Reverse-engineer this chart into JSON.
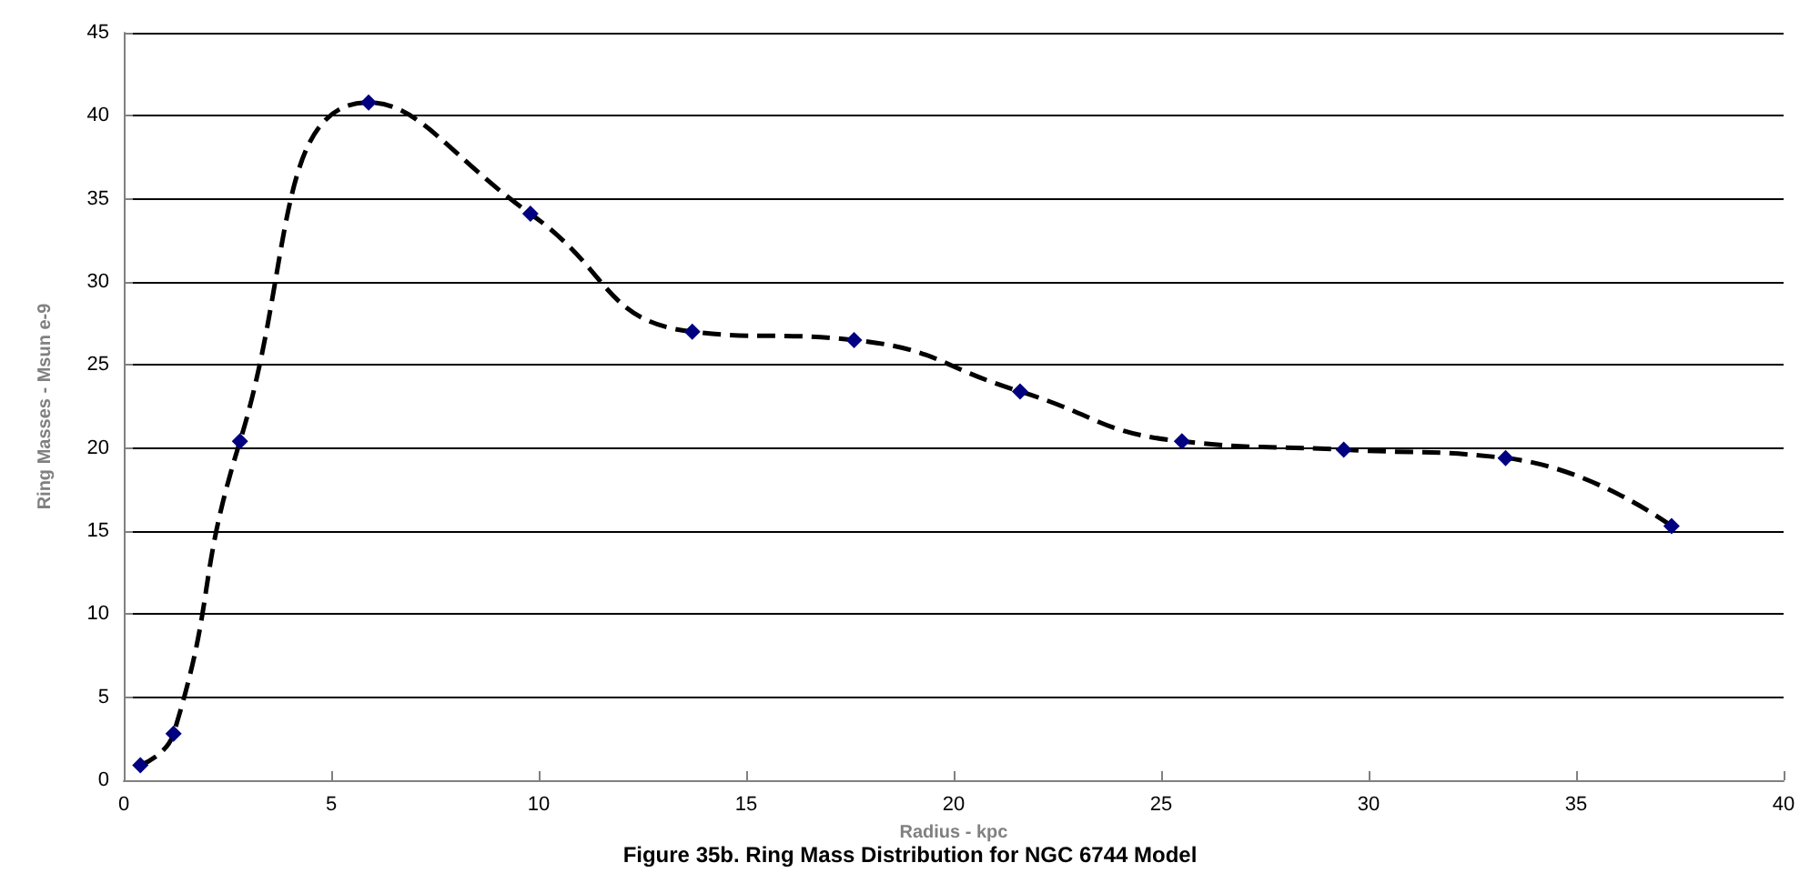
{
  "chart_data": {
    "type": "line",
    "title": "Figure 35b. Ring Mass Distribution for NGC 6744 Model",
    "xlabel": "Radius - kpc",
    "ylabel": "Ring Masses - Msun e-9",
    "x": [
      0.4,
      1.2,
      2.8,
      5.9,
      9.8,
      13.7,
      17.6,
      21.6,
      25.5,
      29.4,
      33.3,
      37.3
    ],
    "series": [
      {
        "color": "#000080",
        "values": [
          0.9,
          2.8,
          20.4,
          40.8,
          34.1,
          27.0,
          26.5,
          23.4,
          20.4,
          19.9,
          19.4,
          15.3
        ]
      }
    ],
    "xlim": [
      0,
      40
    ],
    "xticks": [
      0,
      5,
      10,
      15,
      20,
      25,
      30,
      35,
      40
    ],
    "ylim": [
      0,
      45
    ],
    "yticks": [
      0,
      5,
      10,
      15,
      20,
      25,
      30,
      35,
      40,
      45
    ],
    "grid": "y",
    "marker": "diamond",
    "line_style": "dashed"
  }
}
